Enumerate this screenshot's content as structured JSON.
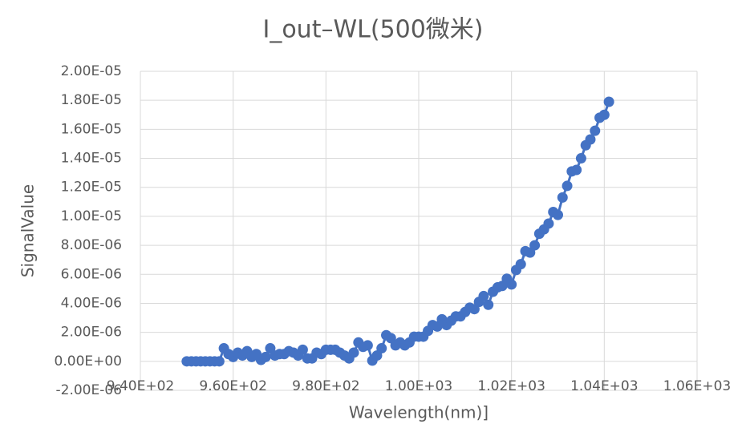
{
  "chart_data": {
    "type": "line",
    "title": "I_out–WL(500微米)",
    "x_label": "Wavelength(nm)]",
    "y_label": "SignalValue",
    "color": "#4472c4",
    "grid": true,
    "markers": true,
    "x": [
      950,
      951,
      952,
      953,
      954,
      955,
      956,
      957,
      958,
      959,
      960,
      961,
      962,
      963,
      964,
      965,
      966,
      967,
      968,
      969,
      970,
      971,
      972,
      973,
      974,
      975,
      976,
      977,
      978,
      979,
      980,
      981,
      982,
      983,
      984,
      985,
      986,
      987,
      988,
      989,
      990,
      991,
      992,
      993,
      994,
      995,
      996,
      997,
      998,
      999,
      1000,
      1001,
      1002,
      1003,
      1004,
      1005,
      1006,
      1007,
      1008,
      1009,
      1010,
      1011,
      1012,
      1013,
      1014,
      1015,
      1016,
      1017,
      1018,
      1019,
      1020,
      1021,
      1022,
      1023,
      1024,
      1025,
      1026,
      1027,
      1028,
      1029,
      1030,
      1031,
      1032,
      1033,
      1034,
      1035,
      1036,
      1037,
      1038,
      1039,
      1040,
      1041
    ],
    "values": [
      0,
      0,
      0,
      0,
      0,
      0,
      0,
      0,
      9e-07,
      5e-07,
      3e-07,
      6e-07,
      4e-07,
      7e-07,
      3e-07,
      5e-07,
      1e-07,
      3e-07,
      9e-07,
      4e-07,
      5e-07,
      5e-07,
      7e-07,
      6e-07,
      4e-07,
      8e-07,
      2e-07,
      2e-07,
      6e-07,
      5e-07,
      8e-07,
      8e-07,
      8e-07,
      6e-07,
      4e-07,
      2e-07,
      6e-07,
      1.3e-06,
      1e-06,
      1.1e-06,
      5e-08,
      4e-07,
      9e-07,
      1.8e-06,
      1.6e-06,
      1.1e-06,
      1.3e-06,
      1.1e-06,
      1.3e-06,
      1.7e-06,
      1.7e-06,
      1.7e-06,
      2.1e-06,
      2.5e-06,
      2.4e-06,
      2.9e-06,
      2.5e-06,
      2.8e-06,
      3.1e-06,
      3.1e-06,
      3.4e-06,
      3.7e-06,
      3.6e-06,
      4.1e-06,
      4.5e-06,
      3.9e-06,
      4.8e-06,
      5.1e-06,
      5.2e-06,
      5.7e-06,
      5.3e-06,
      6.3e-06,
      6.7e-06,
      7.6e-06,
      7.5e-06,
      8e-06,
      8.8e-06,
      9.1e-06,
      9.5e-06,
      1.03e-05,
      1.01e-05,
      1.13e-05,
      1.21e-05,
      1.31e-05,
      1.32e-05,
      1.4e-05,
      1.49e-05,
      1.53e-05,
      1.59e-05,
      1.68e-05,
      1.7e-05,
      1.79e-05
    ],
    "xlim": [
      940,
      1060
    ],
    "xticks": [
      {
        "value": 940,
        "label": "9.40E+02"
      },
      {
        "value": 960,
        "label": "9.60E+02"
      },
      {
        "value": 980,
        "label": "9.80E+02"
      },
      {
        "value": 1000,
        "label": "1.00E+03"
      },
      {
        "value": 1020,
        "label": "1.02E+03"
      },
      {
        "value": 1040,
        "label": "1.04E+03"
      },
      {
        "value": 1060,
        "label": "1.06E+03"
      }
    ],
    "ylim": [
      -2e-06,
      2e-05
    ],
    "yticks": [
      {
        "value": 2e-05,
        "label": "2.00E-05"
      },
      {
        "value": 1.8e-05,
        "label": "1.80E-05"
      },
      {
        "value": 1.6e-05,
        "label": "1.60E-05"
      },
      {
        "value": 1.4e-05,
        "label": "1.40E-05"
      },
      {
        "value": 1.2e-05,
        "label": "1.20E-05"
      },
      {
        "value": 1e-05,
        "label": "1.00E-05"
      },
      {
        "value": 8e-06,
        "label": "8.00E-06"
      },
      {
        "value": 6e-06,
        "label": "6.00E-06"
      },
      {
        "value": 4e-06,
        "label": "4.00E-06"
      },
      {
        "value": 2e-06,
        "label": "2.00E-06"
      },
      {
        "value": 0,
        "label": "0.00E+00"
      },
      {
        "value": -2e-06,
        "label": "-2.00E-06"
      }
    ]
  }
}
